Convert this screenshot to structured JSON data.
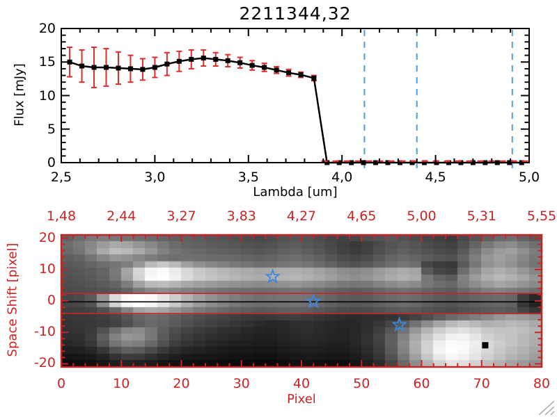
{
  "colors": {
    "background": "#ffffff",
    "frame_black": "#000000",
    "axis_red": "#cb2323",
    "error_red": "#e12a2a",
    "dashed_blue": "#4a9de8",
    "star_blue": "#3b87e0",
    "grip_gray": "#a8a8a8"
  },
  "chart_data": [
    {
      "type": "line",
      "panel": "flux-spectrum",
      "title": "2211344,32",
      "xlabel": "Lambda [um]",
      "ylabel": "Flux [mJy]",
      "xlim": [
        2.5,
        5.0
      ],
      "ylim": [
        0,
        20
      ],
      "xticks": {
        "values": [
          2.5,
          3.0,
          3.5,
          4.0,
          4.5,
          5.0
        ],
        "labels": [
          "2,5",
          "3,0",
          "3,5",
          "4,0",
          "4,5",
          "5,0"
        ]
      },
      "yticks": {
        "values": [
          0,
          5,
          10,
          15,
          20
        ],
        "labels": [
          "0",
          "5",
          "10",
          "15",
          "20"
        ]
      },
      "x_minor_step": 0.1,
      "y_minor_step": 1,
      "series": [
        {
          "name": "flux-with-errors",
          "marker": "square",
          "color": "#000000",
          "error_color": "#e12a2a",
          "x": [
            2.545,
            2.61,
            2.675,
            2.74,
            2.805,
            2.87,
            2.935,
            3.0,
            3.065,
            3.13,
            3.195,
            3.26,
            3.325,
            3.39,
            3.455,
            3.52,
            3.585,
            3.65,
            3.715,
            3.78,
            3.85,
            3.92,
            3.985,
            4.05,
            4.115,
            4.18,
            4.245,
            4.31,
            4.375,
            4.44,
            4.505,
            4.57,
            4.635,
            4.7,
            4.765,
            4.83,
            4.895,
            4.96
          ],
          "y": [
            15.0,
            14.4,
            14.2,
            14.2,
            14.1,
            14.0,
            13.9,
            14.2,
            14.7,
            15.1,
            15.4,
            15.6,
            15.4,
            15.2,
            14.9,
            14.5,
            14.2,
            13.8,
            13.4,
            13.1,
            12.6,
            0,
            0,
            0,
            0,
            0,
            0,
            0,
            0,
            0,
            0,
            0,
            0,
            0,
            0,
            0,
            0,
            0
          ],
          "yerr": [
            2.2,
            2.4,
            3.0,
            2.8,
            2.4,
            2.0,
            1.6,
            1.5,
            1.7,
            1.5,
            1.4,
            1.2,
            1.0,
            0.9,
            0.8,
            0.7,
            0.6,
            0.5,
            0.5,
            0.4,
            0.4,
            0.15,
            0.15,
            0.15,
            0.15,
            0.15,
            0.15,
            0.15,
            0.15,
            0.15,
            0.15,
            0.15,
            0.15,
            0.15,
            0.15,
            0.15,
            0.15,
            0.15
          ]
        }
      ],
      "zero_dashed_line": {
        "x_start": 3.89,
        "x_end": 5.0,
        "y": 0,
        "color": "#e12a2a"
      },
      "vlines": {
        "x": [
          4.12,
          4.4,
          4.91
        ],
        "color": "#4a9de8",
        "style": "dashed"
      }
    },
    {
      "type": "heatmap",
      "panel": "spatial-spectral-image",
      "xlabel": "Pixel",
      "ylabel": "Space Shift [pixel]",
      "xlim": [
        0,
        80
      ],
      "ylim": [
        -21,
        21
      ],
      "axis_color": "#cb2323",
      "top_axis_labels": {
        "positions": [
          0,
          10,
          20,
          30,
          40,
          50,
          60,
          70,
          80
        ],
        "labels": [
          "1,48",
          "2,44",
          "3,27",
          "3,83",
          "4,27",
          "4,65",
          "5,00",
          "5,31",
          "5,55"
        ]
      },
      "xticks": {
        "values": [
          0,
          10,
          20,
          30,
          40,
          50,
          60,
          70,
          80
        ],
        "labels": [
          "0",
          "10",
          "20",
          "30",
          "40",
          "50",
          "60",
          "70",
          "80"
        ]
      },
      "yticks": {
        "values": [
          20,
          10,
          0,
          -10,
          -20
        ],
        "labels": [
          "20",
          "10",
          "0",
          "-10",
          "-20"
        ]
      },
      "x_minor_step": 2,
      "y_minor_step": 2,
      "grid_rows": 20,
      "grid_cols": 40,
      "grid": [
        [
          100,
          110,
          120,
          125,
          120,
          115,
          110,
          105,
          100,
          95,
          95,
          92,
          88,
          84,
          80,
          76,
          72,
          76,
          82,
          86,
          82,
          76,
          70,
          66,
          72,
          78,
          84,
          88,
          82,
          76,
          70,
          64,
          60,
          72,
          85,
          95,
          105,
          110,
          100,
          90
        ],
        [
          110,
          120,
          135,
          155,
          170,
          165,
          150,
          135,
          120,
          108,
          100,
          96,
          92,
          88,
          86,
          82,
          78,
          82,
          88,
          92,
          86,
          80,
          72,
          64,
          58,
          64,
          74,
          84,
          90,
          84,
          76,
          70,
          66,
          80,
          100,
          120,
          135,
          140,
          125,
          110
        ],
        [
          105,
          115,
          140,
          170,
          190,
          185,
          170,
          150,
          130,
          115,
          108,
          104,
          100,
          96,
          94,
          90,
          86,
          90,
          96,
          100,
          94,
          86,
          76,
          66,
          60,
          66,
          78,
          90,
          96,
          90,
          82,
          76,
          72,
          90,
          115,
          140,
          155,
          160,
          145,
          125
        ],
        [
          95,
          100,
          115,
          135,
          150,
          145,
          135,
          125,
          115,
          110,
          112,
          110,
          108,
          106,
          104,
          100,
          96,
          100,
          106,
          110,
          104,
          96,
          86,
          76,
          70,
          76,
          88,
          100,
          106,
          100,
          92,
          86,
          82,
          100,
          125,
          150,
          160,
          150,
          135,
          120
        ],
        [
          88,
          92,
          100,
          110,
          115,
          125,
          150,
          185,
          200,
          185,
          160,
          145,
          135,
          128,
          122,
          116,
          110,
          112,
          118,
          122,
          116,
          108,
          98,
          88,
          82,
          88,
          100,
          110,
          116,
          110,
          70,
          60,
          56,
          90,
          120,
          145,
          155,
          145,
          130,
          115
        ],
        [
          82,
          86,
          92,
          100,
          120,
          165,
          215,
          245,
          250,
          235,
          215,
          200,
          190,
          182,
          176,
          170,
          165,
          168,
          172,
          176,
          170,
          162,
          152,
          142,
          136,
          142,
          154,
          164,
          170,
          164,
          90,
          70,
          64,
          110,
          140,
          165,
          175,
          165,
          150,
          135
        ],
        [
          80,
          84,
          90,
          98,
          118,
          160,
          210,
          250,
          255,
          240,
          220,
          205,
          195,
          188,
          182,
          176,
          172,
          175,
          179,
          183,
          177,
          169,
          159,
          149,
          143,
          149,
          161,
          171,
          177,
          171,
          120,
          100,
          90,
          130,
          155,
          175,
          185,
          178,
          165,
          150
        ],
        [
          78,
          80,
          84,
          90,
          100,
          125,
          160,
          185,
          190,
          180,
          168,
          160,
          154,
          150,
          146,
          142,
          138,
          141,
          145,
          149,
          143,
          137,
          129,
          121,
          117,
          121,
          131,
          139,
          145,
          139,
          120,
          110,
          105,
          125,
          140,
          155,
          165,
          158,
          148,
          138
        ],
        [
          75,
          76,
          78,
          82,
          88,
          100,
          120,
          135,
          140,
          135,
          128,
          122,
          118,
          115,
          112,
          110,
          108,
          110,
          113,
          116,
          112,
          107,
          101,
          95,
          92,
          95,
          102,
          108,
          113,
          108,
          100,
          95,
          92,
          105,
          115,
          125,
          130,
          125,
          118,
          110
        ],
        [
          70,
          75,
          90,
          150,
          220,
          250,
          255,
          250,
          230,
          205,
          180,
          160,
          145,
          135,
          125,
          118,
          112,
          114,
          117,
          120,
          115,
          108,
          100,
          93,
          90,
          93,
          100,
          107,
          112,
          107,
          98,
          92,
          88,
          95,
          100,
          105,
          108,
          103,
          60,
          40
        ],
        [
          68,
          72,
          85,
          140,
          210,
          245,
          255,
          245,
          225,
          200,
          175,
          155,
          140,
          130,
          120,
          113,
          108,
          110,
          113,
          116,
          111,
          104,
          96,
          90,
          87,
          90,
          97,
          103,
          108,
          103,
          94,
          88,
          84,
          90,
          95,
          100,
          103,
          98,
          55,
          35
        ],
        [
          62,
          64,
          68,
          80,
          100,
          130,
          160,
          170,
          165,
          150,
          135,
          122,
          112,
          105,
          98,
          93,
          89,
          91,
          94,
          97,
          93,
          87,
          81,
          76,
          73,
          76,
          82,
          88,
          92,
          88,
          82,
          78,
          75,
          80,
          85,
          90,
          92,
          88,
          70,
          55
        ],
        [
          55,
          56,
          58,
          62,
          70,
          85,
          100,
          108,
          104,
          95,
          86,
          78,
          72,
          67,
          62,
          58,
          55,
          57,
          60,
          62,
          58,
          53,
          48,
          44,
          42,
          44,
          48,
          52,
          58,
          66,
          78,
          92,
          105,
          115,
          125,
          135,
          150,
          160,
          155,
          145
        ],
        [
          52,
          54,
          56,
          60,
          66,
          78,
          95,
          105,
          100,
          90,
          80,
          72,
          66,
          60,
          55,
          48,
          42,
          38,
          40,
          45,
          48,
          44,
          40,
          38,
          40,
          45,
          55,
          70,
          90,
          115,
          140,
          165,
          185,
          195,
          185,
          175,
          180,
          185,
          180,
          170
        ],
        [
          50,
          52,
          58,
          80,
          110,
          135,
          140,
          120,
          95,
          78,
          68,
          60,
          54,
          48,
          44,
          40,
          36,
          34,
          38,
          42,
          45,
          42,
          38,
          36,
          40,
          48,
          62,
          85,
          115,
          150,
          180,
          205,
          220,
          225,
          215,
          200,
          195,
          195,
          190,
          180
        ],
        [
          45,
          48,
          60,
          95,
          130,
          150,
          145,
          120,
          90,
          72,
          60,
          52,
          46,
          42,
          38,
          35,
          32,
          32,
          36,
          40,
          42,
          40,
          36,
          35,
          40,
          50,
          68,
          95,
          130,
          168,
          198,
          225,
          240,
          242,
          230,
          210,
          200,
          195,
          185,
          175
        ],
        [
          40,
          44,
          55,
          85,
          115,
          130,
          125,
          105,
          80,
          62,
          52,
          46,
          40,
          36,
          32,
          30,
          28,
          28,
          32,
          36,
          38,
          36,
          33,
          32,
          38,
          48,
          65,
          95,
          135,
          175,
          210,
          240,
          252,
          250,
          238,
          218,
          205,
          195,
          185,
          172
        ],
        [
          30,
          32,
          38,
          55,
          80,
          95,
          90,
          75,
          58,
          45,
          38,
          34,
          30,
          27,
          25,
          24,
          22,
          22,
          26,
          30,
          32,
          30,
          28,
          28,
          34,
          44,
          60,
          90,
          130,
          172,
          210,
          245,
          255,
          250,
          235,
          215,
          200,
          188,
          178,
          165
        ],
        [
          20,
          22,
          26,
          35,
          50,
          60,
          58,
          48,
          38,
          30,
          26,
          24,
          22,
          20,
          18,
          18,
          16,
          16,
          20,
          24,
          26,
          24,
          22,
          22,
          28,
          38,
          54,
          82,
          120,
          160,
          198,
          232,
          248,
          242,
          228,
          208,
          192,
          180,
          170,
          158
        ],
        [
          12,
          14,
          16,
          22,
          30,
          36,
          34,
          28,
          22,
          18,
          16,
          14,
          12,
          12,
          10,
          10,
          8,
          8,
          12,
          16,
          18,
          16,
          14,
          14,
          20,
          30,
          44,
          70,
          105,
          142,
          178,
          210,
          228,
          224,
          210,
          192,
          178,
          165,
          155,
          145
        ]
      ],
      "overlays": {
        "aperture_lines": {
          "y": [
            2.4,
            -4.0
          ],
          "color": "#cb2323"
        },
        "trace_line": {
          "y": -0.3,
          "color": "#000000"
        },
        "stars": [
          {
            "x": 35.2,
            "y": 7.7
          },
          {
            "x": 42.0,
            "y": -0.2
          },
          {
            "x": 56.3,
            "y": -7.6
          }
        ],
        "square_marker": {
          "x": 70.6,
          "y": -14.1,
          "color": "#000000"
        }
      }
    }
  ]
}
